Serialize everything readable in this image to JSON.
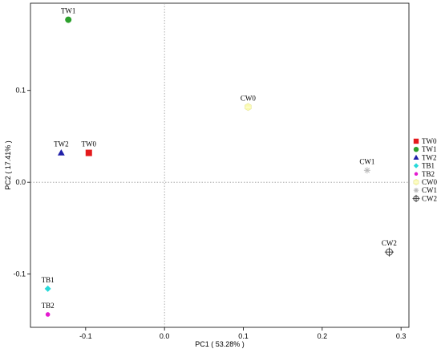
{
  "chart_data": {
    "type": "scatter",
    "title": "",
    "xlabel": "PC1 ( 53.28% )",
    "ylabel": "PC2 ( 17.41% )",
    "xlim": [
      -0.17,
      0.31
    ],
    "ylim": [
      -0.158,
      0.195
    ],
    "x_ticks": [
      -0.1,
      0.0,
      0.1,
      0.2,
      0.3
    ],
    "x_tick_labels": [
      "-0.1",
      "0.0",
      "0.1",
      "0.2",
      "0.3"
    ],
    "y_ticks": [
      -0.1,
      0.0,
      0.1
    ],
    "y_tick_labels": [
      "-0.1",
      "0.0",
      "0.1"
    ],
    "reference_lines": {
      "x": 0,
      "y": 0,
      "style": "dotted"
    },
    "grid": false,
    "legend_position": "right",
    "series": [
      {
        "name": "TW0",
        "x": -0.096,
        "y": 0.032,
        "marker": "square",
        "color": "#e41a1c"
      },
      {
        "name": "TW1",
        "x": -0.122,
        "y": 0.177,
        "marker": "circle",
        "color": "#2ca02c"
      },
      {
        "name": "TW2",
        "x": -0.131,
        "y": 0.032,
        "marker": "triangle",
        "color": "#1f1fa8"
      },
      {
        "name": "TB1",
        "x": -0.148,
        "y": -0.116,
        "marker": "diamond",
        "color": "#27d9d9"
      },
      {
        "name": "TB2",
        "x": -0.148,
        "y": -0.144,
        "marker": "dot",
        "color": "#e41ad0"
      },
      {
        "name": "CW0",
        "x": 0.106,
        "y": 0.082,
        "marker": "hexagon",
        "color": "#fafab0"
      },
      {
        "name": "CW1",
        "x": 0.257,
        "y": 0.013,
        "marker": "asterisk",
        "color": "#b8b8b8"
      },
      {
        "name": "CW2",
        "x": 0.285,
        "y": -0.076,
        "marker": "crossed-circle",
        "color": "#333333"
      }
    ]
  }
}
